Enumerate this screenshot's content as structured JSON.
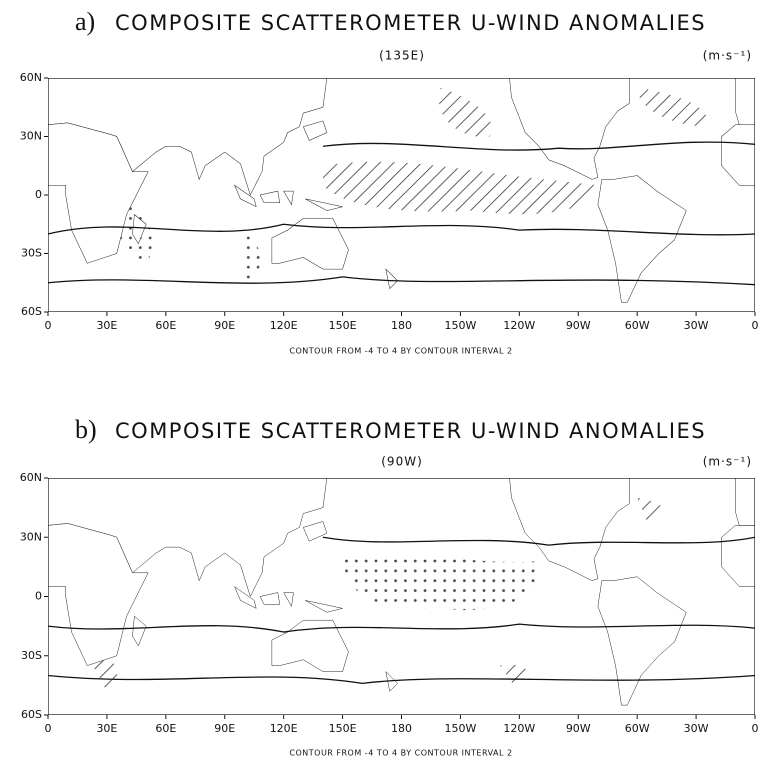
{
  "panels": [
    {
      "label": "a)",
      "title": "COMPOSITE SCATTEROMETER U-WIND ANOMALIES",
      "subtitle": "(135E)",
      "units": "(m·s⁻¹)",
      "yticks": [
        "60N",
        "30N",
        "0",
        "30S",
        "60S"
      ],
      "xticks": [
        "0",
        "30E",
        "60E",
        "90E",
        "120E",
        "150E",
        "180",
        "150W",
        "120W",
        "90W",
        "60W",
        "30W",
        "0"
      ],
      "note": "CONTOUR FROM -4 TO 4 BY CONTOUR INTERVAL 2"
    },
    {
      "label": "b)",
      "title": "COMPOSITE SCATTEROMETER U-WIND ANOMALIES",
      "subtitle": "(90W)",
      "units": "(m·s⁻¹)",
      "yticks": [
        "60N",
        "30N",
        "0",
        "30S",
        "60S"
      ],
      "xticks": [
        "0",
        "30E",
        "60E",
        "90E",
        "120E",
        "150E",
        "180",
        "150W",
        "120W",
        "90W",
        "60W",
        "30W",
        "0"
      ],
      "note": "CONTOUR FROM -4 TO 4 BY CONTOUR INTERVAL 2"
    }
  ]
}
